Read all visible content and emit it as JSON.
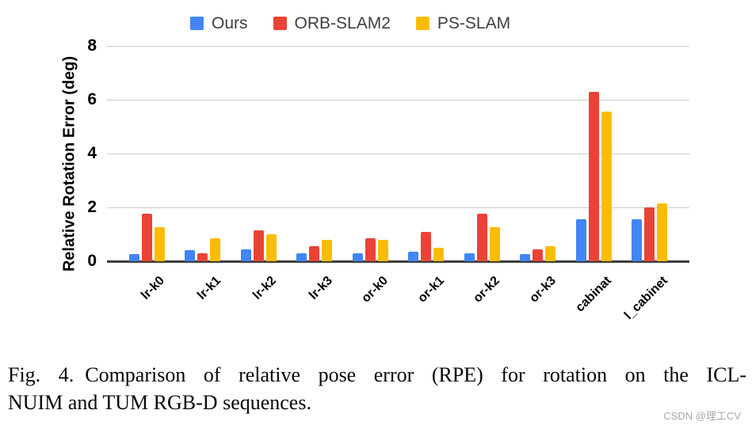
{
  "chart_data": {
    "type": "bar",
    "title": "",
    "xlabel": "",
    "ylabel": "Relative Rotation Error (deg)",
    "ylim": [
      0,
      8
    ],
    "yticks": [
      0,
      2,
      4,
      6,
      8
    ],
    "grid": true,
    "legend_position": "top",
    "categories": [
      "lr-k0",
      "lr-k1",
      "lr-k2",
      "lr-k3",
      "or-k0",
      "or-k1",
      "or-k2",
      "or-k3",
      "cabinat",
      "l_cabinet"
    ],
    "series": [
      {
        "name": "Ours",
        "color": "#4285F4",
        "values": [
          0.25,
          0.4,
          0.45,
          0.3,
          0.3,
          0.35,
          0.3,
          0.25,
          1.55,
          1.55
        ]
      },
      {
        "name": "ORB-SLAM2",
        "color": "#EA4335",
        "values": [
          1.75,
          0.3,
          1.15,
          0.55,
          0.85,
          1.1,
          1.75,
          0.45,
          6.3,
          2.0
        ]
      },
      {
        "name": "PS-SLAM",
        "color": "#FBBC04",
        "values": [
          1.25,
          0.85,
          1.0,
          0.8,
          0.8,
          0.5,
          1.25,
          0.55,
          5.55,
          2.15
        ]
      }
    ]
  },
  "caption": {
    "prefix": "Fig. 4.",
    "line1_rest": "Comparison of relative pose error (RPE) for rotation on the ICL-",
    "line2": "NUIM and TUM RGB-D sequences."
  },
  "watermark": "CSDN @理工CV",
  "colors": {
    "grid": "#cccccc",
    "axis": "#3d3d3d",
    "legend_text": "#3c4043"
  }
}
